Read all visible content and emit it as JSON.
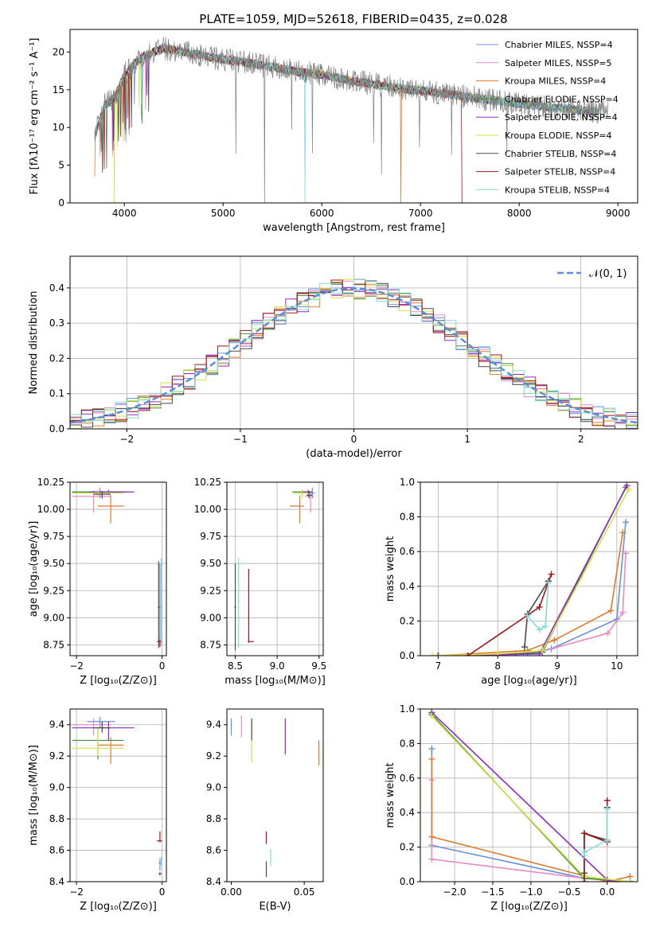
{
  "title": "PLATE=1059, MJD=52618, FIBERID=0435, z=0.028",
  "colors": [
    "#6a8fdb",
    "#e98ac4",
    "#e07b2c",
    "#3f8f3f",
    "#8e2bbf",
    "#d6e24a",
    "#4a4a4a",
    "#a2141b",
    "#82dcdc"
  ],
  "chart_data": [
    {
      "id": "spectrum",
      "type": "line",
      "xlabel": "wavelength [Angstrom, rest frame]",
      "ylabel": "Flux [fλ10⁻¹⁷ erg cm⁻² s⁻¹ A⁻¹]",
      "xlim": [
        3450,
        9200
      ],
      "ylim": [
        0,
        23
      ],
      "xticks": [
        4000,
        5000,
        6000,
        7000,
        8000,
        9000
      ],
      "yticks": [
        0,
        5,
        10,
        15,
        20
      ],
      "grid": false,
      "legend_position": "top-right",
      "legend": [
        "Chabrier MILES, NSSP=4",
        "Salpeter MILES, NSSP=5",
        "Kroupa MILES, NSSP=4",
        "Chabrier ELODIE, NSSP=4",
        "Salpeter ELODIE, NSSP=4",
        "Kroupa ELODIE, NSSP=4",
        "Chabrier STELIB, NSSP=4",
        "Salpeter STELIB, NSSP=4",
        "Kroupa STELIB, NSSP=4"
      ],
      "continuum": {
        "x": [
          3700,
          3800,
          3900,
          4000,
          4100,
          4200,
          4400,
          4600,
          4800,
          5000,
          5200,
          5500,
          5800,
          6000,
          6300,
          6600,
          6900,
          7200,
          7500,
          7800,
          8100,
          8400,
          8700,
          8900
        ],
        "y": [
          9,
          13,
          14,
          17,
          18.5,
          19.5,
          20.5,
          20,
          19.5,
          19,
          18.7,
          18,
          17.3,
          17,
          16.2,
          15.6,
          15,
          14.6,
          14,
          13.5,
          13,
          12.6,
          12.2,
          12
        ]
      }
    },
    {
      "id": "residuals",
      "type": "histogram",
      "xlabel": "(data-model)/error",
      "ylabel": "Normed distribution",
      "xlim": [
        -2.5,
        2.5
      ],
      "ylim": [
        0,
        0.49
      ],
      "xticks": [
        -2,
        -1,
        0,
        1,
        2
      ],
      "yticks": [
        0.0,
        0.1,
        0.2,
        0.3,
        0.4
      ],
      "grid": true,
      "legend_position": "top-right",
      "legend": [
        "𝒩(0, 1)"
      ]
    },
    {
      "id": "age_vs_Z",
      "type": "errorbar",
      "xlabel": "Z [log₁₀(Z/Z⊙)]",
      "ylabel": "age  [log₁₀(age/yr)]",
      "xlim": [
        -2.15,
        0.1
      ],
      "ylim": [
        8.65,
        10.25
      ],
      "xticks": [
        -2,
        0
      ],
      "yticks": [
        8.75,
        9.0,
        9.25,
        9.5,
        9.75,
        10.0,
        10.25
      ],
      "grid": true,
      "points": [
        {
          "c": 0,
          "x": -1.45,
          "y": 10.16,
          "xe": [
            -2.1,
            -0.9
          ],
          "ye": [
            10.1,
            10.2
          ]
        },
        {
          "c": 1,
          "x": -1.6,
          "y": 10.12,
          "xe": [
            -2.1,
            -1.2
          ],
          "ye": [
            9.97,
            10.17
          ]
        },
        {
          "c": 2,
          "x": -1.2,
          "y": 10.03,
          "xe": [
            -1.5,
            -0.9
          ],
          "ye": [
            9.87,
            10.13
          ]
        },
        {
          "c": 3,
          "x": -1.5,
          "y": 10.16,
          "xe": [
            -2.1,
            -0.8
          ],
          "ye": [
            10.13,
            10.18
          ]
        },
        {
          "c": 4,
          "x": -1.25,
          "y": 10.16,
          "xe": [
            -1.7,
            -0.65
          ],
          "ye": [
            10.14,
            10.18
          ]
        },
        {
          "c": 5,
          "x": -1.5,
          "y": 10.15,
          "xe": [
            -2.1,
            -0.9
          ],
          "ye": [
            10.1,
            10.18
          ]
        },
        {
          "c": 6,
          "x": -1.4,
          "y": 10.14,
          "xe": [
            -1.6,
            -1.2
          ],
          "ye": [
            10.1,
            10.17
          ]
        },
        {
          "c": 0,
          "x": -0.05,
          "y": 9.1,
          "xe": [
            -0.08,
            -0.02
          ],
          "ye": [
            8.75,
            9.5
          ]
        },
        {
          "c": 7,
          "x": -0.05,
          "y": 8.78,
          "xe": [
            -0.12,
            0.0
          ],
          "ye": [
            8.73,
            8.8
          ]
        },
        {
          "c": 6,
          "x": -0.08,
          "y": 9.1,
          "xe": [
            -0.1,
            -0.06
          ],
          "ye": [
            8.72,
            9.52
          ]
        },
        {
          "c": 8,
          "x": -0.02,
          "y": 9.15,
          "xe": [
            -0.03,
            -0.01
          ],
          "ye": [
            8.75,
            9.55
          ]
        }
      ]
    },
    {
      "id": "age_vs_mass",
      "type": "errorbar",
      "xlabel": "mass [log₁₀(M/M⊙)]",
      "ylabel": "",
      "xlim": [
        8.4,
        9.55
      ],
      "ylim": [
        8.65,
        10.25
      ],
      "xticks": [
        8.5,
        9.0,
        9.5
      ],
      "yticks": [
        8.75,
        9.0,
        9.25,
        9.5,
        9.75,
        10.0,
        10.25
      ],
      "grid": true,
      "points": [
        {
          "c": 0,
          "x": 9.42,
          "y": 10.15,
          "xe": [
            9.38,
            9.45
          ],
          "ye": [
            10.1,
            10.2
          ]
        },
        {
          "c": 1,
          "x": 9.4,
          "y": 10.12,
          "xe": [
            9.33,
            9.44
          ],
          "ye": [
            9.97,
            10.17
          ]
        },
        {
          "c": 2,
          "x": 9.27,
          "y": 10.03,
          "xe": [
            9.15,
            9.32
          ],
          "ye": [
            9.87,
            10.13
          ]
        },
        {
          "c": 3,
          "x": 9.3,
          "y": 10.16,
          "xe": [
            9.18,
            9.38
          ],
          "ye": [
            10.13,
            10.18
          ]
        },
        {
          "c": 4,
          "x": 9.37,
          "y": 10.16,
          "xe": [
            9.3,
            9.42
          ],
          "ye": [
            10.14,
            10.18
          ]
        },
        {
          "c": 5,
          "x": 9.3,
          "y": 10.15,
          "xe": [
            9.2,
            9.38
          ],
          "ye": [
            10.1,
            10.18
          ]
        },
        {
          "c": 6,
          "x": 9.38,
          "y": 10.13,
          "xe": [
            9.35,
            9.42
          ],
          "ye": [
            10.1,
            10.17
          ]
        },
        {
          "c": 6,
          "x": 8.5,
          "y": 9.1,
          "xe": [
            8.49,
            8.51
          ],
          "ye": [
            8.7,
            9.5
          ]
        },
        {
          "c": 8,
          "x": 8.54,
          "y": 9.15,
          "xe": [
            8.53,
            8.55
          ],
          "ye": [
            8.72,
            9.55
          ]
        },
        {
          "c": 7,
          "x": 8.66,
          "y": 8.78,
          "xe": [
            8.65,
            8.72
          ],
          "ye": [
            8.77,
            9.45
          ]
        }
      ]
    },
    {
      "id": "massweight_vs_age",
      "type": "line",
      "xlabel": "age  [log₁₀(age/yr)]",
      "ylabel": "mass weight",
      "xlim": [
        6.7,
        10.35
      ],
      "ylim": [
        0,
        1.0
      ],
      "xticks": [
        7,
        8,
        9,
        10
      ],
      "yticks": [
        0.0,
        0.2,
        0.4,
        0.6,
        0.8,
        1.0
      ],
      "grid": true,
      "series": [
        {
          "c": 0,
          "x": [
            7.0,
            8.5,
            8.9,
            10.0,
            10.15
          ],
          "y": [
            0.0,
            0.01,
            0.04,
            0.21,
            0.77
          ]
        },
        {
          "c": 1,
          "x": [
            7.0,
            8.0,
            8.7,
            9.85,
            10.1,
            10.15
          ],
          "y": [
            0.0,
            0.01,
            0.02,
            0.13,
            0.25,
            0.59
          ]
        },
        {
          "c": 2,
          "x": [
            7.0,
            8.5,
            8.95,
            9.9,
            10.1
          ],
          "y": [
            0.0,
            0.03,
            0.09,
            0.26,
            0.71
          ]
        },
        {
          "c": 3,
          "x": [
            7.0,
            8.3,
            8.75,
            10.15
          ],
          "y": [
            0.0,
            0.01,
            0.02,
            0.97
          ]
        },
        {
          "c": 4,
          "x": [
            7.0,
            8.7,
            10.17
          ],
          "y": [
            0.0,
            0.01,
            0.98
          ]
        },
        {
          "c": 5,
          "x": [
            6.9,
            8.0,
            8.75,
            10.2
          ],
          "y": [
            0.0,
            0.01,
            0.03,
            0.96
          ]
        },
        {
          "c": 6,
          "x": [
            8.45,
            8.5,
            8.85
          ],
          "y": [
            0.05,
            0.24,
            0.43
          ]
        },
        {
          "c": 7,
          "x": [
            7.5,
            8.7,
            8.9
          ],
          "y": [
            0.0,
            0.28,
            0.47
          ]
        },
        {
          "c": 8,
          "x": [
            8.5,
            8.7,
            8.8,
            8.85
          ],
          "y": [
            0.23,
            0.15,
            0.17,
            0.42
          ]
        }
      ]
    },
    {
      "id": "mass_vs_Z",
      "type": "errorbar",
      "xlabel": "Z [log₁₀(Z/Z⊙)]",
      "ylabel": "mass [log₁₀(M/M⊙)]",
      "xlim": [
        -2.15,
        0.1
      ],
      "ylim": [
        8.4,
        9.5
      ],
      "xticks": [
        -2,
        0
      ],
      "yticks": [
        8.4,
        8.6,
        8.8,
        9.0,
        9.2,
        9.4
      ],
      "grid": true,
      "points": [
        {
          "c": 0,
          "x": -1.45,
          "y": 9.42,
          "xe": [
            -1.75,
            -1.1
          ],
          "ye": [
            9.38,
            9.45
          ]
        },
        {
          "c": 1,
          "x": -1.6,
          "y": 9.4,
          "xe": [
            -2.1,
            -1.2
          ],
          "ye": [
            9.33,
            9.44
          ]
        },
        {
          "c": 2,
          "x": -1.2,
          "y": 9.27,
          "xe": [
            -1.5,
            -0.9
          ],
          "ye": [
            9.15,
            9.32
          ]
        },
        {
          "c": 3,
          "x": -1.5,
          "y": 9.3,
          "xe": [
            -2.1,
            -0.9
          ],
          "ye": [
            9.18,
            9.38
          ]
        },
        {
          "c": 4,
          "x": -1.25,
          "y": 9.38,
          "xe": [
            -2.1,
            -0.65
          ],
          "ye": [
            9.3,
            9.42
          ]
        },
        {
          "c": 5,
          "x": -1.5,
          "y": 9.25,
          "xe": [
            -2.1,
            -0.9
          ],
          "ye": [
            9.2,
            9.38
          ]
        },
        {
          "c": 6,
          "x": -1.4,
          "y": 9.38,
          "xe": [
            -1.6,
            -1.2
          ],
          "ye": [
            9.35,
            9.42
          ]
        },
        {
          "c": 7,
          "x": -0.05,
          "y": 8.66,
          "xe": [
            -0.12,
            0.0
          ],
          "ye": [
            8.65,
            8.72
          ]
        },
        {
          "c": 0,
          "x": -0.05,
          "y": 8.52,
          "xe": [
            -0.08,
            -0.02
          ],
          "ye": [
            8.47,
            8.55
          ]
        },
        {
          "c": 6,
          "x": -0.05,
          "y": 8.45,
          "xe": [
            -0.08,
            -0.02
          ],
          "ye": [
            8.44,
            8.46
          ]
        },
        {
          "c": 8,
          "x": -0.02,
          "y": 8.52,
          "xe": [
            -0.03,
            -0.01
          ],
          "ye": [
            8.5,
            8.56
          ]
        }
      ]
    },
    {
      "id": "mass_vs_EBV",
      "type": "errorbar",
      "xlabel": "E(B-V)",
      "ylabel": "",
      "xlim": [
        -0.003,
        0.063
      ],
      "ylim": [
        8.4,
        9.5
      ],
      "xticks": [
        0.0,
        0.05
      ],
      "yticks": [
        8.4,
        8.6,
        8.8,
        9.0,
        9.2,
        9.4
      ],
      "grid": false,
      "points": [
        {
          "c": 0,
          "x": 0.0,
          "y": 9.4,
          "xe": [
            0.0,
            0.0
          ],
          "ye": [
            9.33,
            9.44
          ]
        },
        {
          "c": 1,
          "x": 0.007,
          "y": 9.39,
          "xe": [
            0.007,
            0.007
          ],
          "ye": [
            9.32,
            9.46
          ]
        },
        {
          "c": 5,
          "x": 0.014,
          "y": 9.3,
          "xe": [
            0.014,
            0.014
          ],
          "ye": [
            9.16,
            9.4
          ]
        },
        {
          "c": 6,
          "x": 0.014,
          "y": 9.35,
          "xe": [
            0.014,
            0.014
          ],
          "ye": [
            9.3,
            9.44
          ]
        },
        {
          "c": 4,
          "x": 0.037,
          "y": 9.33,
          "xe": [
            0.037,
            0.037
          ],
          "ye": [
            9.21,
            9.44
          ]
        },
        {
          "c": 2,
          "x": 0.06,
          "y": 9.22,
          "xe": [
            0.06,
            0.06
          ],
          "ye": [
            9.14,
            9.3
          ]
        },
        {
          "c": 7,
          "x": 0.024,
          "y": 8.68,
          "xe": [
            0.024,
            0.024
          ],
          "ye": [
            8.64,
            8.72
          ]
        },
        {
          "c": 6,
          "x": 0.024,
          "y": 8.48,
          "xe": [
            0.024,
            0.024
          ],
          "ye": [
            8.43,
            8.53
          ]
        },
        {
          "c": 8,
          "x": 0.027,
          "y": 8.56,
          "xe": [
            0.027,
            0.027
          ],
          "ye": [
            8.5,
            8.61
          ]
        }
      ]
    },
    {
      "id": "massweight_vs_Z",
      "type": "line",
      "xlabel": "Z [log₁₀(Z/Z⊙)]",
      "ylabel": "mass weight",
      "xlim": [
        -2.45,
        0.4
      ],
      "ylim": [
        0,
        1.0
      ],
      "xticks": [
        -2.0,
        -1.5,
        -1.0,
        -0.5,
        0.0
      ],
      "yticks": [
        0.0,
        0.2,
        0.4,
        0.6,
        0.8,
        1.0
      ],
      "grid": true,
      "series": [
        {
          "c": 0,
          "x": [
            -2.3,
            -2.3,
            -0.3,
            0.3
          ],
          "y": [
            0.77,
            0.21,
            0.02,
            0.0
          ]
        },
        {
          "c": 1,
          "x": [
            -2.3,
            -2.3,
            -0.3,
            0.3
          ],
          "y": [
            0.59,
            0.13,
            0.02,
            0.0
          ]
        },
        {
          "c": 2,
          "x": [
            -2.3,
            -2.3,
            0.0,
            0.3
          ],
          "y": [
            0.71,
            0.26,
            0.0,
            0.03
          ]
        },
        {
          "c": 3,
          "x": [
            -2.3,
            -0.3,
            0.3
          ],
          "y": [
            0.97,
            0.02,
            0.0
          ]
        },
        {
          "c": 4,
          "x": [
            -2.3,
            0.0,
            0.3
          ],
          "y": [
            0.98,
            0.01,
            0.0
          ]
        },
        {
          "c": 5,
          "x": [
            -2.3,
            -0.3,
            0.3
          ],
          "y": [
            0.96,
            0.03,
            0.0
          ]
        },
        {
          "c": 6,
          "x": [
            -0.3,
            -0.3,
            0.0,
            0.0
          ],
          "y": [
            0.05,
            0.28,
            0.24,
            0.43
          ]
        },
        {
          "c": 7,
          "x": [
            -0.3,
            -0.3,
            0.0,
            0.0
          ],
          "y": [
            0.0,
            0.28,
            0.23,
            0.47
          ]
        },
        {
          "c": 8,
          "x": [
            -0.3,
            -0.3,
            0.0,
            0.0
          ],
          "y": [
            0.15,
            0.17,
            0.24,
            0.42
          ]
        }
      ]
    }
  ]
}
